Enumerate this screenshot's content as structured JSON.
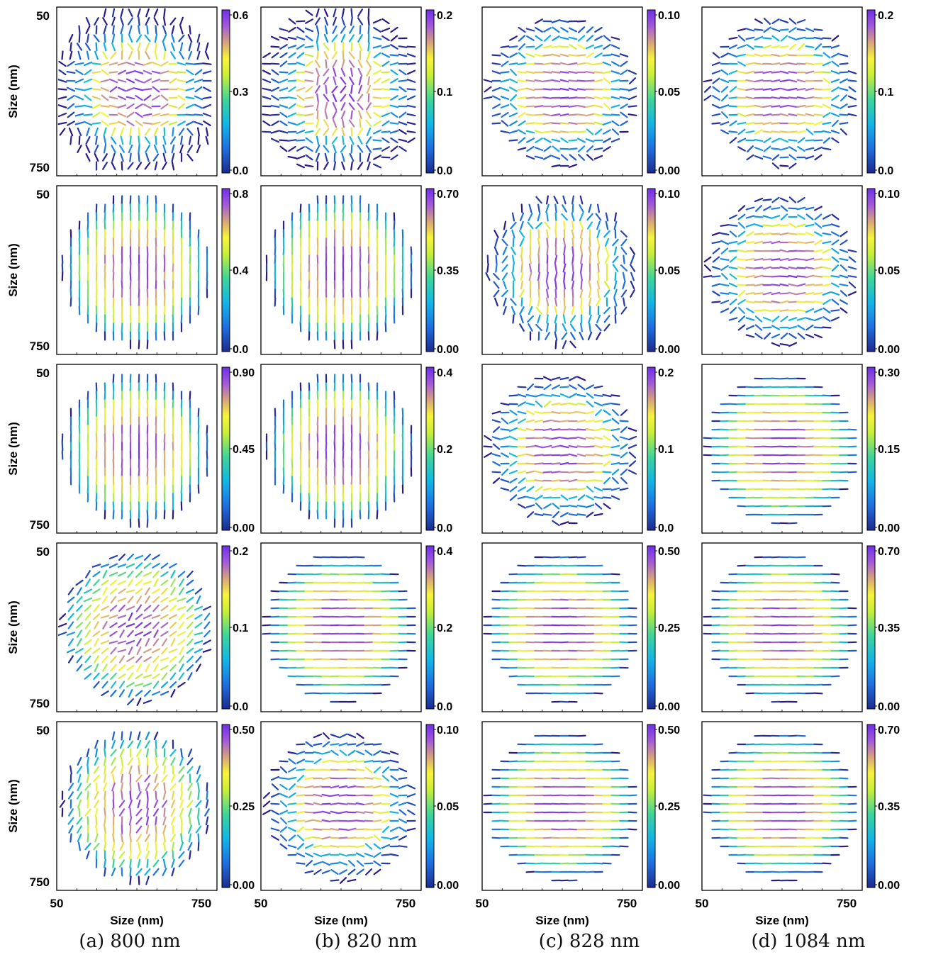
{
  "chart_data": {
    "type": "vector-field grid",
    "colorscale": [
      "#2b1a8a",
      "#1f6fe0",
      "#13b5e6",
      "#36d19a",
      "#c9ef3a",
      "#f6f43d",
      "#e6b86a",
      "#a058d9",
      "#7a32e6"
    ],
    "axes": {
      "ylabel": "Size (nm)",
      "xlabel": "Size (nm)",
      "x_ticks": [
        "50",
        "750"
      ],
      "y_ticks": [
        "50",
        "750"
      ],
      "range_nm": [
        50,
        750
      ]
    },
    "columns": [
      {
        "caption": "(a) 800 nm"
      },
      {
        "caption": "(b) 820 nm"
      },
      {
        "caption": "(c) 828 nm"
      },
      {
        "caption": "(d) 1084 nm"
      }
    ],
    "panels": [
      [
        {
          "pattern": "mixed-h",
          "colorbar": [
            "0.6",
            "0.3",
            "0.0"
          ]
        },
        {
          "pattern": "mixed-v",
          "colorbar": [
            "0.2",
            "0.1",
            "0.0"
          ]
        },
        {
          "pattern": "h-noisy",
          "colorbar": [
            "0.10",
            "0.05",
            "0.00"
          ]
        },
        {
          "pattern": "h-noisy",
          "colorbar": [
            "0.2",
            "0.1",
            "0.0"
          ]
        }
      ],
      [
        {
          "pattern": "v",
          "colorbar": [
            "0.8",
            "0.4",
            "0.0"
          ]
        },
        {
          "pattern": "v",
          "colorbar": [
            "0.70",
            "0.35",
            "0.00"
          ]
        },
        {
          "pattern": "v-noisy",
          "colorbar": [
            "0.10",
            "0.05",
            "0.00"
          ]
        },
        {
          "pattern": "h-noisy",
          "colorbar": [
            "0.10",
            "0.05",
            "0.00"
          ]
        }
      ],
      [
        {
          "pattern": "v",
          "colorbar": [
            "0.90",
            "0.45",
            "0.00"
          ]
        },
        {
          "pattern": "v",
          "colorbar": [
            "0.4",
            "0.2",
            "0.0"
          ]
        },
        {
          "pattern": "h-noisy",
          "colorbar": [
            "0.2",
            "0.1",
            "0.0"
          ]
        },
        {
          "pattern": "h",
          "colorbar": [
            "0.30",
            "0.15",
            "0.00"
          ]
        }
      ],
      [
        {
          "pattern": "diag",
          "colorbar": [
            "0.2",
            "0.1",
            "0.0"
          ]
        },
        {
          "pattern": "h",
          "colorbar": [
            "0.4",
            "0.2",
            "0.0"
          ]
        },
        {
          "pattern": "h",
          "colorbar": [
            "0.50",
            "0.25",
            "0.00"
          ]
        },
        {
          "pattern": "h",
          "colorbar": [
            "0.70",
            "0.35",
            "0.00"
          ]
        }
      ],
      [
        {
          "pattern": "diag-v",
          "colorbar": [
            "0.50",
            "0.25",
            "0.00"
          ]
        },
        {
          "pattern": "h-noisy",
          "colorbar": [
            "0.10",
            "0.05",
            "0.00"
          ]
        },
        {
          "pattern": "h",
          "colorbar": [
            "0.50",
            "0.25",
            "0.00"
          ]
        },
        {
          "pattern": "h",
          "colorbar": [
            "0.70",
            "0.35",
            "0.00"
          ]
        }
      ]
    ]
  }
}
